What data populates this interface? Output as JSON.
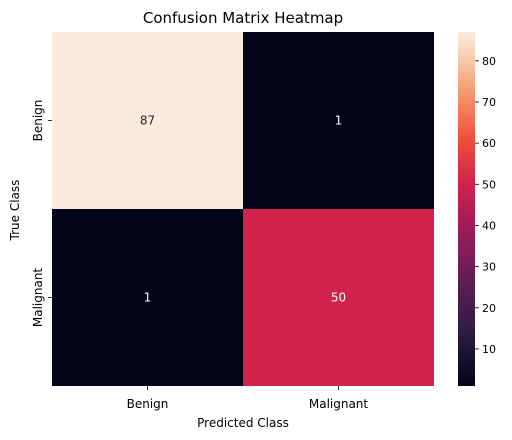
{
  "chart_data": {
    "type": "heatmap",
    "title": "Confusion Matrix Heatmap",
    "xlabel": "Predicted Class",
    "ylabel": "True Class",
    "x_categories": [
      "Benign",
      "Malignant"
    ],
    "y_categories": [
      "Benign",
      "Malignant"
    ],
    "values": [
      [
        87,
        1
      ],
      [
        1,
        50
      ]
    ],
    "colorbar": {
      "range": [
        1,
        87
      ],
      "ticks": [
        10,
        20,
        30,
        40,
        50,
        60,
        70,
        80
      ]
    },
    "colormap": "rocket",
    "colors": {
      "min": "#03051a",
      "mid": "#e13342",
      "max": "#faebdd"
    }
  }
}
